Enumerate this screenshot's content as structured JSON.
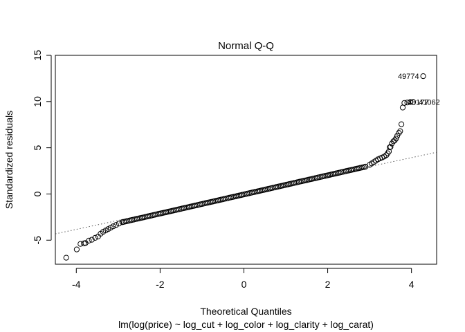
{
  "chart_data": {
    "type": "scatter",
    "title": "Normal Q-Q",
    "xlabel": "Theoretical Quantiles",
    "subtitle": "lm(log(price) ~ log_cut + log_color + log_clarity + log_carat)",
    "ylabel": "Standardized residuals",
    "xlim": [
      -4.5,
      4.6
    ],
    "ylim": [
      -7.6,
      15.0
    ],
    "x_ticks": [
      -4,
      -2,
      0,
      2,
      4
    ],
    "y_ticks": [
      -5,
      0,
      5,
      10,
      15
    ],
    "reference_line": {
      "intercept": 0.05,
      "slope": 0.97,
      "style": "dotted",
      "color": "#555555"
    },
    "labeled_points": [
      {
        "label": "49774",
        "x": 4.28,
        "y": 12.75
      },
      {
        "label": "41062",
        "x": 4.04,
        "y": 9.95
      },
      {
        "label": "48177",
        "x": 3.97,
        "y": 9.95
      }
    ],
    "upper_tail_points": [
      [
        2.9,
        2.95
      ],
      [
        3.0,
        3.15
      ],
      [
        3.05,
        3.3
      ],
      [
        3.1,
        3.45
      ],
      [
        3.15,
        3.6
      ],
      [
        3.2,
        3.75
      ],
      [
        3.25,
        3.85
      ],
      [
        3.3,
        3.95
      ],
      [
        3.35,
        4.05
      ],
      [
        3.4,
        4.2
      ],
      [
        3.43,
        4.4
      ],
      [
        3.46,
        4.6
      ],
      [
        3.48,
        5.05
      ],
      [
        3.5,
        5.1
      ],
      [
        3.53,
        5.45
      ],
      [
        3.57,
        5.7
      ],
      [
        3.6,
        5.8
      ],
      [
        3.63,
        6.0
      ],
      [
        3.66,
        6.3
      ],
      [
        3.7,
        6.6
      ],
      [
        3.73,
        6.8
      ],
      [
        3.76,
        7.55
      ],
      [
        3.79,
        9.35
      ],
      [
        3.83,
        9.85
      ],
      [
        3.9,
        9.9
      ]
    ],
    "lower_tail_points": [
      [
        -4.24,
        -6.9
      ],
      [
        -3.99,
        -6.0
      ],
      [
        -3.9,
        -5.4
      ],
      [
        -3.82,
        -5.35
      ],
      [
        -3.78,
        -5.3
      ],
      [
        -3.7,
        -5.05
      ],
      [
        -3.63,
        -4.95
      ],
      [
        -3.55,
        -4.75
      ],
      [
        -3.48,
        -4.6
      ],
      [
        -3.42,
        -4.3
      ],
      [
        -3.36,
        -4.1
      ],
      [
        -3.3,
        -3.95
      ],
      [
        -3.24,
        -3.8
      ],
      [
        -3.18,
        -3.65
      ],
      [
        -3.12,
        -3.5
      ],
      [
        -3.05,
        -3.35
      ],
      [
        -2.98,
        -3.2
      ],
      [
        -2.9,
        -3.05
      ]
    ],
    "body": {
      "x_from": -2.9,
      "x_to": 2.9,
      "y_from": -3.05,
      "y_to": 2.95,
      "bend": 0.3
    },
    "grid": false,
    "legend": "none"
  }
}
